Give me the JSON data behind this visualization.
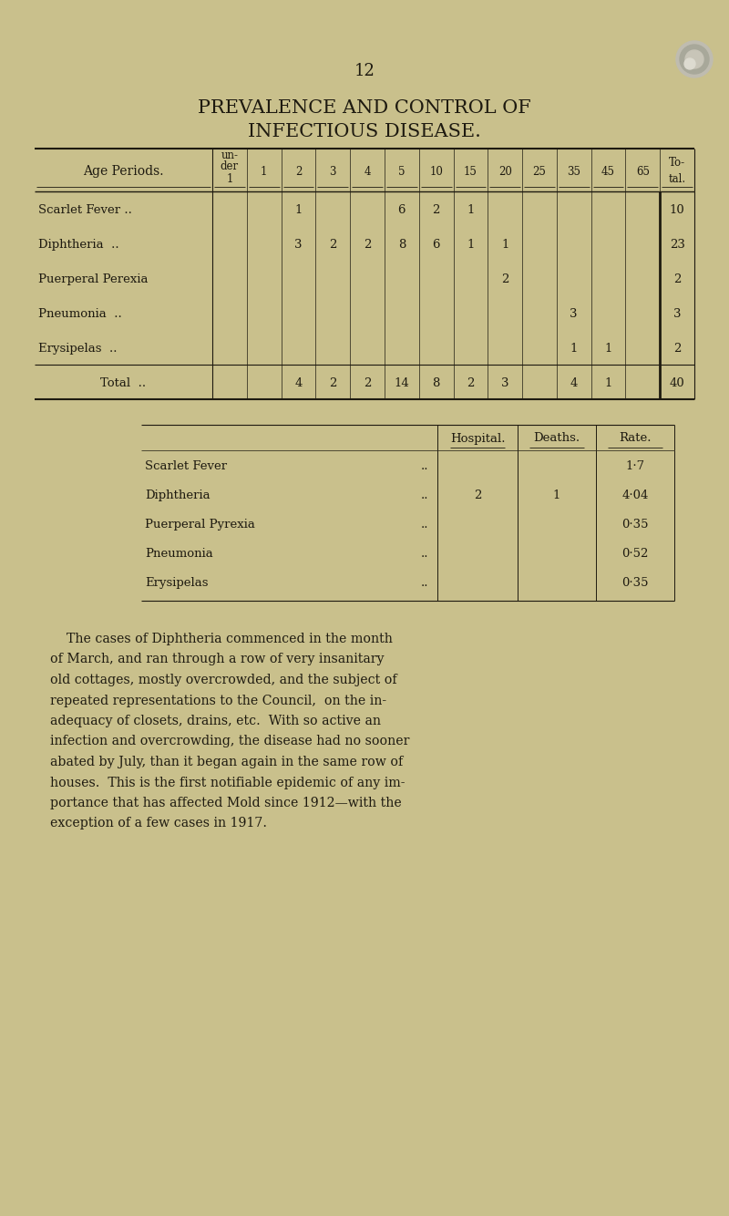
{
  "bg_color": "#c9c08c",
  "text_color": "#1e1a10",
  "page_number": "12",
  "title_line1": "PREVALENCE AND CONTROL OF",
  "title_line2": "INFECTIOUS DISEASE.",
  "age_label": "Age Periods.",
  "table1_diseases": [
    "Scarlet Fever ..",
    "Diphtheria  ..",
    "Puerperal Perexia",
    "Pneumonia  ..",
    "Erysipelas  .."
  ],
  "table1_data": [
    [
      "",
      "",
      "1",
      "",
      "",
      "6",
      "2",
      "1",
      "",
      "",
      "",
      "",
      "",
      "10"
    ],
    [
      "",
      "",
      "3",
      "2",
      "2",
      "8",
      "6",
      "1",
      "1",
      "",
      "",
      "",
      "",
      "23"
    ],
    [
      "",
      "",
      "",
      "",
      "",
      "",
      "",
      "",
      "2",
      "",
      "",
      "",
      "",
      "2"
    ],
    [
      "",
      "",
      "",
      "",
      "",
      "",
      "",
      "",
      "",
      "",
      "3",
      "",
      "",
      "3"
    ],
    [
      "",
      "",
      "",
      "",
      "",
      "",
      "",
      "",
      "",
      "",
      "1",
      "1",
      "",
      "2"
    ]
  ],
  "table1_total": [
    "",
    "",
    "4",
    "2",
    "2",
    "14",
    "8",
    "2",
    "3",
    "",
    "4",
    "1",
    "",
    "40"
  ],
  "table2_diseases": [
    "Scarlet Fever",
    "Diphtheria",
    "Puerperal Pyrexia",
    "Pneumonia",
    "Erysipelas"
  ],
  "table2_data": [
    [
      "",
      "",
      "1·7"
    ],
    [
      "2",
      "1",
      "4·04"
    ],
    [
      "",
      "",
      "0·35"
    ],
    [
      "",
      "",
      "0·52"
    ],
    [
      "",
      "",
      "0·35"
    ]
  ],
  "para_lines": [
    "    The cases of Diphtheria commenced in the month",
    "of March, and ran through a row of very insanitary",
    "old cottages, mostly overcrowded, and the subject of",
    "repeated representations to the Council,  on the in-",
    "adequacy of closets, drains, etc.  With so active an",
    "infection and overcrowding, the disease had no sooner",
    "abated by July, than it began again in the same row of",
    "houses.  This is the first notifiable epidemic of any im-",
    "portance that has affected Mold since 1912—with the",
    "exception of a few cases in 1917."
  ]
}
